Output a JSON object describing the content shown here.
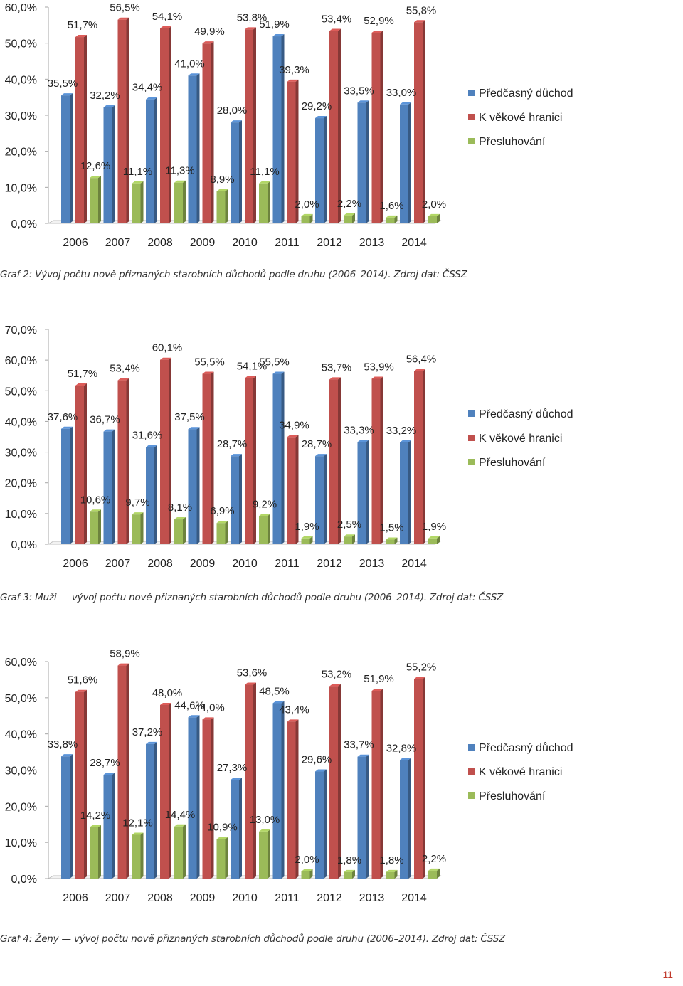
{
  "page": {
    "number": "11"
  },
  "colors": {
    "blue": "#4f81bd",
    "red": "#c0504d",
    "green": "#9bbb59"
  },
  "captions": {
    "graf2": "Graf 2: Vývoj počtu nově přiznaných starobních důchodů podle druhu (2006–2014). Zdroj dat: ČSSZ",
    "graf3": "Graf 3: Muži — vývoj počtu nově přiznaných starobních důchodů podle druhu (2006–2014). Zdroj dat: ČSSZ",
    "graf4": "Graf 4: Ženy — vývoj počtu nově přiznaných starobních důchodů podle druhu (2006–2014). Zdroj dat: ČSSZ"
  },
  "chart_data": [
    {
      "type": "bar",
      "title": "",
      "categories": [
        "2006",
        "2007",
        "2008",
        "2009",
        "2010",
        "2011",
        "2012",
        "2013",
        "2014"
      ],
      "ylim": [
        0,
        60
      ],
      "yticks": [
        "0,0%",
        "10,0%",
        "20,0%",
        "30,0%",
        "40,0%",
        "50,0%",
        "60,0%"
      ],
      "legend_position": "right",
      "series": [
        {
          "name": "Předčasný důchod",
          "color": "#4f81bd",
          "values": [
            35.5,
            32.2,
            34.4,
            41.0,
            28.0,
            51.9,
            29.2,
            33.5,
            33.0
          ],
          "labels": [
            "35,5%",
            "32,2%",
            "34,4%",
            "41,0%",
            "28,0%",
            "51,9%",
            "29,2%",
            "33,5%",
            "33,0%"
          ]
        },
        {
          "name": "K věkové hranici",
          "color": "#c0504d",
          "values": [
            51.7,
            56.5,
            54.1,
            49.9,
            53.8,
            39.3,
            53.4,
            52.9,
            55.8
          ],
          "labels": [
            "51,7%",
            "56,5%",
            "54,1%",
            "49,9%",
            "53,8%",
            "39,3%",
            "53,4%",
            "52,9%",
            "55,8%"
          ]
        },
        {
          "name": "Přesluhování",
          "color": "#9bbb59",
          "values": [
            12.6,
            11.1,
            11.3,
            8.9,
            11.1,
            2.0,
            2.2,
            1.6,
            2.0
          ],
          "labels": [
            "12,6%",
            "11,1%",
            "11,3%",
            "8,9%",
            "11,1%",
            "2,0%",
            "2,2%",
            "1,6%",
            "2,0%"
          ]
        }
      ]
    },
    {
      "type": "bar",
      "title": "",
      "categories": [
        "2006",
        "2007",
        "2008",
        "2009",
        "2010",
        "2011",
        "2012",
        "2013",
        "2014"
      ],
      "ylim": [
        0,
        70
      ],
      "yticks": [
        "0,0%",
        "10,0%",
        "20,0%",
        "30,0%",
        "40,0%",
        "50,0%",
        "60,0%",
        "70,0%"
      ],
      "legend_position": "right",
      "series": [
        {
          "name": "Předčasný důchod",
          "color": "#4f81bd",
          "values": [
            37.6,
            36.7,
            31.6,
            37.5,
            28.7,
            55.5,
            28.7,
            33.3,
            33.2
          ],
          "labels": [
            "37,6%",
            "36,7%",
            "31,6%",
            "37,5%",
            "28,7%",
            "55,5%",
            "28,7%",
            "33,3%",
            "33,2%"
          ]
        },
        {
          "name": "K věkové hranici",
          "color": "#c0504d",
          "values": [
            51.7,
            53.4,
            60.1,
            55.5,
            54.1,
            34.9,
            53.7,
            53.9,
            56.4
          ],
          "labels": [
            "51,7%",
            "53,4%",
            "60,1%",
            "55,5%",
            "54,1%",
            "34,9%",
            "53,7%",
            "53,9%",
            "56,4%"
          ]
        },
        {
          "name": "Přesluhování",
          "color": "#9bbb59",
          "values": [
            10.6,
            9.7,
            8.1,
            6.9,
            9.2,
            1.9,
            2.5,
            1.5,
            1.9
          ],
          "labels": [
            "10,6%",
            "9,7%",
            "8,1%",
            "6,9%",
            "9,2%",
            "1,9%",
            "2,5%",
            "1,5%",
            "1,9%"
          ]
        }
      ]
    },
    {
      "type": "bar",
      "title": "",
      "categories": [
        "2006",
        "2007",
        "2008",
        "2009",
        "2010",
        "2011",
        "2012",
        "2013",
        "2014"
      ],
      "ylim": [
        0,
        60
      ],
      "yticks": [
        "0,0%",
        "10,0%",
        "20,0%",
        "30,0%",
        "40,0%",
        "50,0%",
        "60,0%"
      ],
      "legend_position": "right",
      "series": [
        {
          "name": "Předčasný důchod",
          "color": "#4f81bd",
          "values": [
            33.8,
            28.7,
            37.2,
            44.6,
            27.3,
            48.5,
            29.6,
            33.7,
            32.8
          ],
          "labels": [
            "33,8%",
            "28,7%",
            "37,2%",
            "44,6%",
            "27,3%",
            "48,5%",
            "29,6%",
            "33,7%",
            "32,8%"
          ]
        },
        {
          "name": "K věkové hranici",
          "color": "#c0504d",
          "values": [
            51.6,
            58.9,
            48.0,
            44.0,
            53.6,
            43.4,
            53.2,
            51.9,
            55.2
          ],
          "labels": [
            "51,6%",
            "58,9%",
            "48,0%",
            "44,0%",
            "53,6%",
            "43,4%",
            "53,2%",
            "51,9%",
            "55,2%"
          ]
        },
        {
          "name": "Přesluhování",
          "color": "#9bbb59",
          "values": [
            14.2,
            12.1,
            14.4,
            10.9,
            13.0,
            2.0,
            1.8,
            1.8,
            2.2
          ],
          "labels": [
            "14,2%",
            "12,1%",
            "14,4%",
            "10,9%",
            "13,0%",
            "2,0%",
            "1,8%",
            "1,8%",
            "2,2%"
          ]
        }
      ]
    }
  ]
}
